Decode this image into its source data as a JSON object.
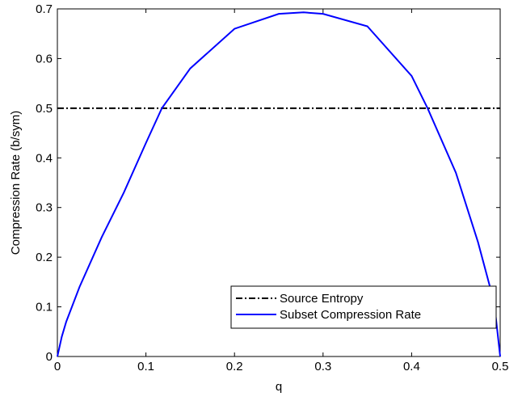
{
  "chart_data": {
    "type": "line",
    "x_label": "q",
    "y_label": "Compression Rate (b/sym)",
    "xlim": [
      0,
      0.5
    ],
    "ylim": [
      0,
      0.7
    ],
    "xticks": [
      0,
      0.1,
      0.2,
      0.3,
      0.4,
      0.5
    ],
    "yticks": [
      0,
      0.1,
      0.2,
      0.3,
      0.4,
      0.5,
      0.6,
      0.7
    ],
    "grid": false,
    "legend": "lower right",
    "series": [
      {
        "name": "Source Entropy",
        "color": "#000000",
        "line_style": "dash-dot",
        "x": [
          0,
          0.5
        ],
        "values": [
          0.5,
          0.5
        ]
      },
      {
        "name": "Subset Compression Rate",
        "color": "#0000ff",
        "line_style": "solid",
        "x": [
          0,
          0.005,
          0.01,
          0.025,
          0.05,
          0.075,
          0.1,
          0.118,
          0.15,
          0.2,
          0.25,
          0.278,
          0.3,
          0.35,
          0.4,
          0.418,
          0.45,
          0.475,
          0.49,
          0.495,
          0.5
        ],
        "values": [
          0,
          0.04,
          0.07,
          0.14,
          0.24,
          0.33,
          0.43,
          0.5,
          0.58,
          0.66,
          0.69,
          0.693,
          0.69,
          0.665,
          0.565,
          0.5,
          0.37,
          0.23,
          0.13,
          0.08,
          0
        ]
      }
    ]
  }
}
